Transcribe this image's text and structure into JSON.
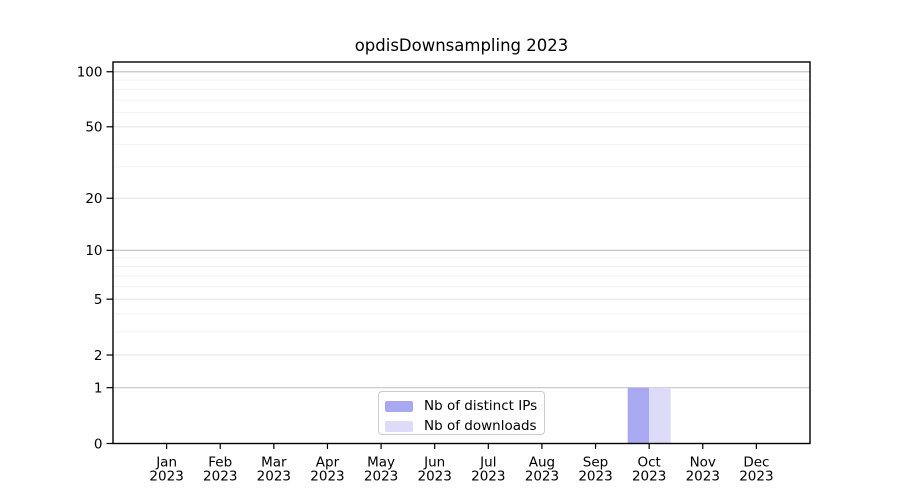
{
  "title": "opdisDownsampling 2023",
  "colors": {
    "distinct_ips": "#a9a9f2",
    "downloads": "#dcdcf8",
    "grid_major10": "#c6c6c6",
    "grid_major": "#e7e7e7",
    "grid_minor": "#f2f2f2",
    "axis": "#000000",
    "text": "#000000",
    "legend_border": "#cccccc"
  },
  "legend": {
    "items": [
      {
        "label": "Nb of distinct IPs",
        "color_key": "distinct_ips"
      },
      {
        "label": "Nb of downloads",
        "color_key": "downloads"
      }
    ]
  },
  "chart_data": {
    "type": "bar",
    "title": "opdisDownsampling 2023",
    "categories": [
      "Jan",
      "Feb",
      "Mar",
      "Apr",
      "May",
      "Jun",
      "Jul",
      "Aug",
      "Sep",
      "Oct",
      "Nov",
      "Dec"
    ],
    "year": "2023",
    "series": [
      {
        "name": "Nb of distinct IPs",
        "values": [
          0,
          0,
          0,
          0,
          0,
          0,
          0,
          0,
          0,
          1,
          0,
          0
        ]
      },
      {
        "name": "Nb of downloads",
        "values": [
          0,
          0,
          0,
          0,
          0,
          0,
          0,
          0,
          0,
          1,
          0,
          0
        ]
      }
    ],
    "yscale": "log1p",
    "ylim": [
      0,
      113
    ],
    "y_major_ticks": [
      100,
      50,
      20,
      10,
      5,
      2,
      1,
      0
    ],
    "y_minor_gridlines": [
      90,
      80,
      70,
      60,
      40,
      30,
      9,
      8,
      7,
      6,
      4,
      3
    ],
    "xlabel": "",
    "ylabel": "",
    "grid": true,
    "legend_position": "bottom-center-inside"
  }
}
